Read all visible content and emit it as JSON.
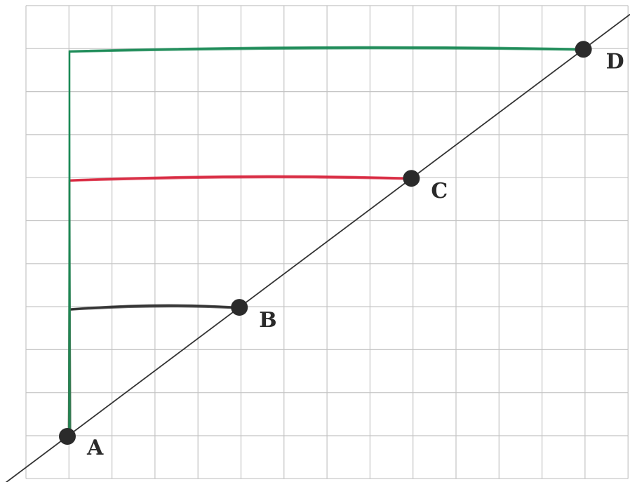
{
  "diagram": {
    "grid_columns": 14,
    "grid_rows": 11,
    "line_color": "#333333",
    "point_color": "#2b2b2b",
    "points": [
      {
        "label": "A",
        "col": 1,
        "row": 1
      },
      {
        "label": "B",
        "col": 5,
        "row": 4
      },
      {
        "label": "C",
        "col": 9,
        "row": 7
      },
      {
        "label": "D",
        "col": 13,
        "row": 10
      }
    ],
    "hand_drawn_paths": [
      {
        "from": "B",
        "color": "#2e2e2e"
      },
      {
        "from": "C",
        "color": "#d8263e"
      },
      {
        "from": "D",
        "color": "#1a8a55"
      }
    ]
  }
}
